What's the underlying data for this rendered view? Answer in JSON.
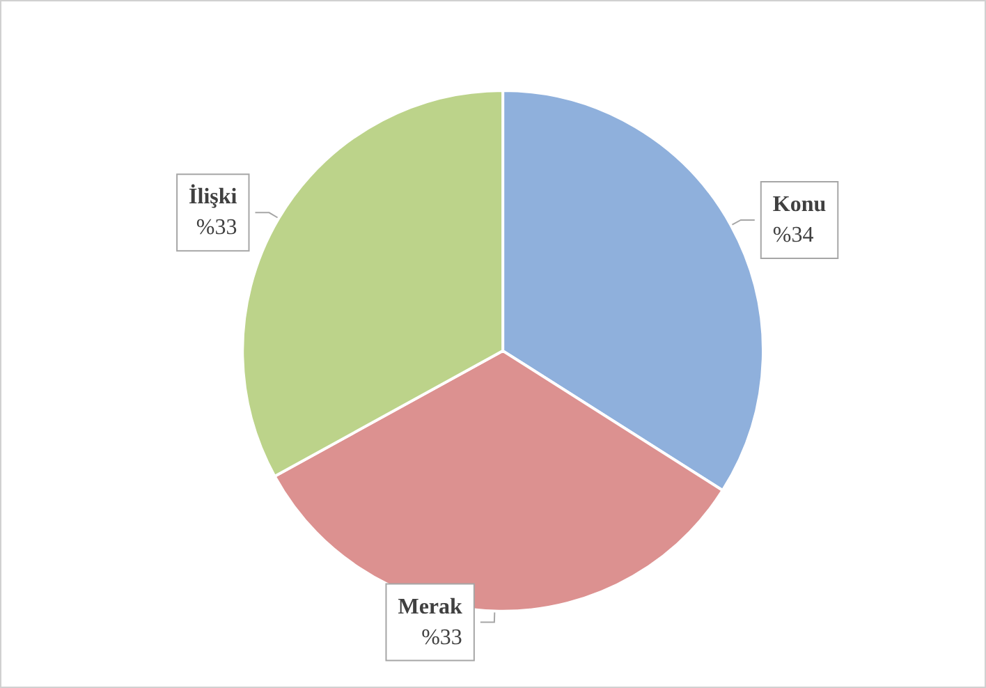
{
  "chart_data": {
    "type": "pie",
    "categories": [
      "Konu",
      "Merak",
      "İlişki"
    ],
    "values": [
      34,
      33,
      33
    ],
    "value_labels": [
      "%34",
      "%33",
      "%33"
    ],
    "colors": [
      "#8fb0dc",
      "#dc9190",
      "#bcd38a"
    ],
    "legend": false
  }
}
